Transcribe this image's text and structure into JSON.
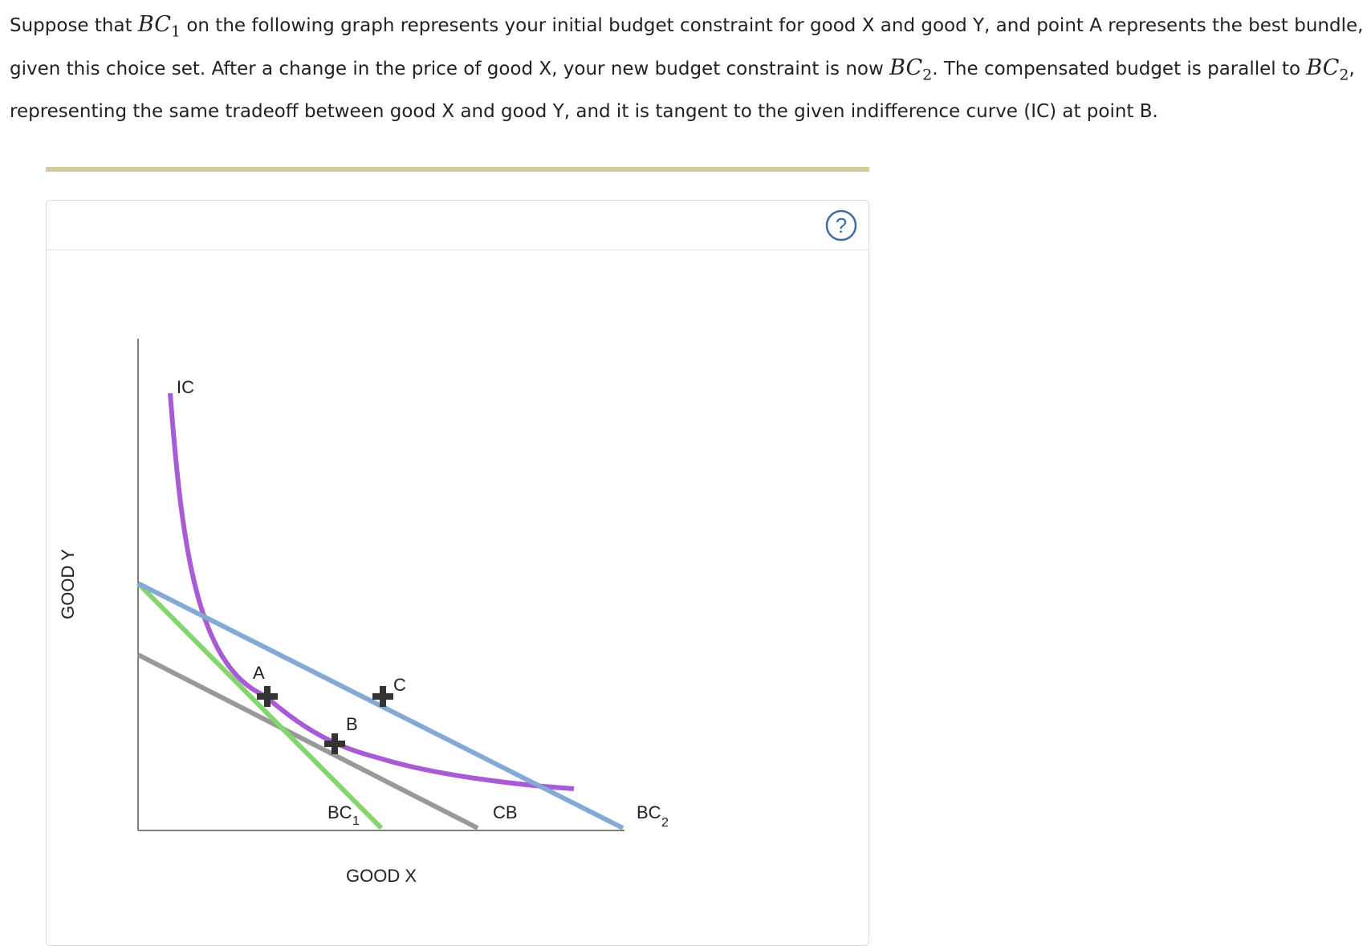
{
  "question": {
    "part1": "Suppose that ",
    "bc1_symbol": "BC",
    "bc1_sub": "1",
    "part2": " on the following graph represents your initial budget constraint for good X and good Y, and point A represents the best bundle, given this choice set. After a change in the price of good X, your new budget constraint is now ",
    "bc2_symbol": "BC",
    "bc2_sub": "2",
    "part3": ". The compensated budget is parallel to ",
    "part4": ", representing the same tradeoff between good X and good Y, and it is tangent to the given indifference curve (IC) at point B."
  },
  "help": {
    "symbol": "?",
    "icon": "question-circle-icon"
  },
  "graph": {
    "x_axis_label": "GOOD X",
    "y_axis_label": "GOOD Y",
    "curves": {
      "ic": {
        "label": "IC",
        "color": "#a95bd6"
      },
      "bc1": {
        "label": "BC",
        "sub": "1",
        "color": "#86d46e"
      },
      "cb": {
        "label": "CB",
        "color": "#999999"
      },
      "bc2": {
        "label": "BC",
        "sub": "2",
        "color": "#85a9d6"
      }
    },
    "points": [
      {
        "id": "A",
        "label": "A"
      },
      {
        "id": "B",
        "label": "B"
      },
      {
        "id": "C",
        "label": "C"
      }
    ]
  },
  "colors": {
    "divider": "#d6cca4",
    "panel_border": "#d9d9d9",
    "help_icon": "#3e6aa6"
  }
}
